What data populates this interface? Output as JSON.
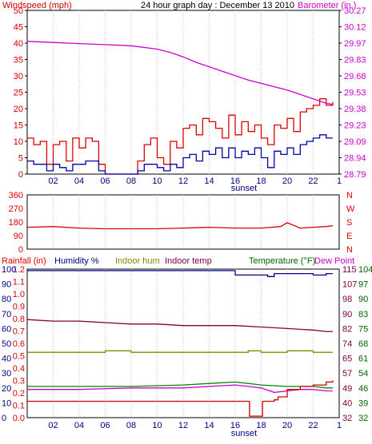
{
  "colors": {
    "windspeed": "#cc0000",
    "gust": "#dd0000",
    "wind_avg": "#0000aa",
    "barometer": "#cc00cc",
    "direction": "#dd0000",
    "rainfall": "#dd0000",
    "humidity": "#000088",
    "indoor_hum": "#888800",
    "indoor_temp": "#800040",
    "temperature": "#006600",
    "dew_point": "#cc00cc",
    "rain_line": "#cc0000",
    "temp_line": "#008800",
    "frame": "#000000",
    "grid": "#c0c0c0"
  },
  "chart_data": [
    {
      "type": "line",
      "title": "24 hour graph day : December 13 2010",
      "left_label": "Windspeed (mph)",
      "right_label": "Barometer (in.)",
      "y_left_ticks": [
        "50",
        "45",
        "40",
        "35",
        "30",
        "25",
        "20",
        "15",
        "10",
        "5",
        "0"
      ],
      "y_right_ticks": [
        "30.27",
        "30.12",
        "29.97",
        "29.83",
        "29.68",
        "29.53",
        "29.38",
        "29.23",
        "29.09",
        "28.94",
        "28.79"
      ],
      "x_ticks": [
        "02",
        "04",
        "06",
        "08",
        "10",
        "12",
        "14",
        "16",
        "18",
        "20",
        "22",
        "1"
      ],
      "x_annotation": "sunset",
      "ylim_left": [
        0,
        50
      ],
      "ylim_right": [
        28.79,
        30.27
      ],
      "x_range_hours": [
        0,
        24
      ],
      "series": [
        {
          "key": "gust",
          "x": [
            0,
            0.5,
            1,
            1.5,
            2,
            2.5,
            3,
            3.5,
            4,
            4.5,
            5,
            5.5,
            6,
            6.5,
            7,
            7.5,
            8,
            8.5,
            9,
            9.5,
            10,
            10.5,
            11,
            11.5,
            12,
            12.5,
            13,
            13.5,
            14,
            14.5,
            15,
            15.5,
            16,
            16.5,
            17,
            17.5,
            18,
            18.5,
            19,
            19.5,
            20,
            20.5,
            21,
            21.5,
            22,
            22.5,
            23,
            23.5
          ],
          "values": [
            11,
            9,
            10,
            3,
            9,
            10,
            4,
            11,
            8,
            11,
            10,
            3,
            0,
            0,
            0,
            0,
            0,
            4,
            9,
            11,
            5,
            3,
            10,
            8,
            14,
            15,
            12,
            17,
            16,
            14,
            11,
            18,
            12,
            16,
            13,
            15,
            11,
            9,
            15,
            14,
            17,
            13,
            19,
            20,
            21,
            23,
            21,
            22
          ]
        },
        {
          "key": "wind_avg",
          "x": [
            0,
            0.5,
            1,
            1.5,
            2,
            2.5,
            3,
            3.5,
            4,
            4.5,
            5,
            5.5,
            6,
            6.5,
            7,
            7.5,
            8,
            8.5,
            9,
            9.5,
            10,
            10.5,
            11,
            11.5,
            12,
            12.5,
            13,
            13.5,
            14,
            14.5,
            15,
            15.5,
            16,
            16.5,
            17,
            17.5,
            18,
            18.5,
            19,
            19.5,
            20,
            20.5,
            21,
            21.5,
            22,
            22.5,
            23,
            23.5
          ],
          "values": [
            4,
            3,
            3,
            1,
            3,
            2,
            1,
            3,
            3,
            4,
            4,
            1,
            0,
            0,
            0,
            0,
            0,
            1,
            3,
            3,
            2,
            1,
            3,
            2,
            5,
            6,
            4,
            7,
            6,
            8,
            5,
            8,
            5,
            7,
            6,
            8,
            5,
            2,
            7,
            6,
            8,
            6,
            9,
            10,
            11,
            12,
            11,
            11
          ]
        },
        {
          "key": "barometer",
          "axis": "right",
          "x": [
            0,
            2,
            4,
            6,
            8,
            10,
            11,
            12,
            13,
            14,
            15,
            16,
            17,
            18,
            19,
            20,
            21,
            22,
            23,
            23.5
          ],
          "values": [
            29.99,
            29.98,
            29.97,
            29.96,
            29.95,
            29.92,
            29.89,
            29.85,
            29.8,
            29.76,
            29.72,
            29.68,
            29.64,
            29.61,
            29.58,
            29.55,
            29.51,
            29.47,
            29.43,
            29.42
          ]
        }
      ]
    },
    {
      "type": "line",
      "left_ticks": [
        "360",
        "270",
        "180",
        "90",
        "0"
      ],
      "right_ticks": [
        "N",
        "W",
        "S",
        "E",
        "N"
      ],
      "ylim": [
        0,
        360
      ],
      "x_range_hours": [
        0,
        24
      ],
      "series": [
        {
          "key": "direction",
          "x": [
            0,
            2,
            4,
            6,
            8,
            10,
            12,
            14,
            16,
            18,
            19.5,
            20,
            21,
            22,
            23,
            23.5
          ],
          "values": [
            145,
            150,
            140,
            135,
            135,
            135,
            140,
            145,
            140,
            140,
            150,
            175,
            140,
            145,
            150,
            155
          ]
        }
      ]
    },
    {
      "type": "line",
      "legend_left": [
        "Rainfall (in)",
        "Humidity %",
        "Indoor hum",
        "Indoor temp"
      ],
      "legend_right": [
        "Temperature (°F)",
        "Dew Point"
      ],
      "y_left_rain_ticks": [
        "1.2",
        "1.1",
        "1.0",
        "0.9",
        "0.8",
        "0.7",
        "0.6",
        "0.5",
        "0.4",
        "0.3",
        "0.2",
        "0.1",
        "0.0"
      ],
      "y_left_hum_ticks": [
        "100",
        "90",
        "80",
        "70",
        "60",
        "50",
        "40",
        "30",
        "20",
        "10",
        "0"
      ],
      "y_right_inner_ticks": [
        "115",
        "107",
        "98",
        "90",
        "82",
        "74",
        "65",
        "57",
        "49",
        "40",
        "32"
      ],
      "y_right_outer_ticks": [
        "104",
        "97",
        "90",
        "83",
        "75",
        "68",
        "61",
        "54",
        "46",
        "39",
        "32"
      ],
      "x_ticks": [
        "02",
        "04",
        "06",
        "08",
        "10",
        "12",
        "14",
        "16",
        "18",
        "20",
        "22",
        "1"
      ],
      "x_annotation": "sunset",
      "ylim_humidity": [
        0,
        100
      ],
      "x_range_hours": [
        0,
        24
      ],
      "series": [
        {
          "key": "humidity",
          "x": [
            0,
            2,
            4,
            6,
            8,
            10,
            12,
            14,
            15,
            16,
            17,
            18,
            18.5,
            19,
            20,
            21,
            22,
            23,
            23.5
          ],
          "values": [
            99,
            99,
            99,
            99,
            99,
            99,
            99,
            99,
            99,
            96,
            96,
            96,
            95,
            97,
            97,
            97,
            96,
            97,
            97
          ]
        },
        {
          "key": "indoor_temp",
          "x": [
            0,
            2,
            4,
            6,
            8,
            10,
            12,
            14,
            16,
            18,
            20,
            22,
            23,
            23.5
          ],
          "values": [
            66,
            65,
            65,
            64,
            63,
            63,
            62,
            62,
            62,
            61,
            60,
            59,
            58,
            58
          ]
        },
        {
          "key": "indoor_hum",
          "x": [
            0,
            4,
            6,
            8,
            10,
            12,
            14,
            16,
            17,
            18,
            20,
            22,
            23.5
          ],
          "values": [
            44,
            44,
            45,
            44,
            44,
            44,
            44,
            44,
            45,
            44,
            45,
            44,
            44
          ]
        },
        {
          "key": "temp_line",
          "x": [
            0,
            4,
            8,
            12,
            14,
            16,
            17,
            18,
            20,
            21,
            22,
            23,
            23.5
          ],
          "values": [
            21,
            21,
            21,
            22,
            23,
            24,
            23,
            22,
            21,
            21,
            21,
            20,
            20
          ]
        },
        {
          "key": "dew_point",
          "x": [
            0,
            4,
            8,
            12,
            14,
            16,
            17,
            18,
            19,
            20,
            21,
            22,
            23,
            23.5
          ],
          "values": [
            19,
            19,
            20,
            20,
            21,
            22,
            21,
            20,
            17,
            18,
            19,
            19,
            18,
            18
          ]
        },
        {
          "key": "rain_line",
          "x": [
            0,
            2,
            4,
            6,
            8,
            10,
            12,
            14,
            16,
            17,
            17.1,
            18,
            18.1,
            19,
            19.3,
            20,
            21,
            22,
            23,
            23.5
          ],
          "values": [
            11,
            11,
            11,
            11,
            11,
            11,
            11,
            11,
            11,
            11,
            1,
            1,
            11,
            12,
            14,
            19,
            21,
            22,
            24,
            25
          ]
        }
      ]
    }
  ]
}
